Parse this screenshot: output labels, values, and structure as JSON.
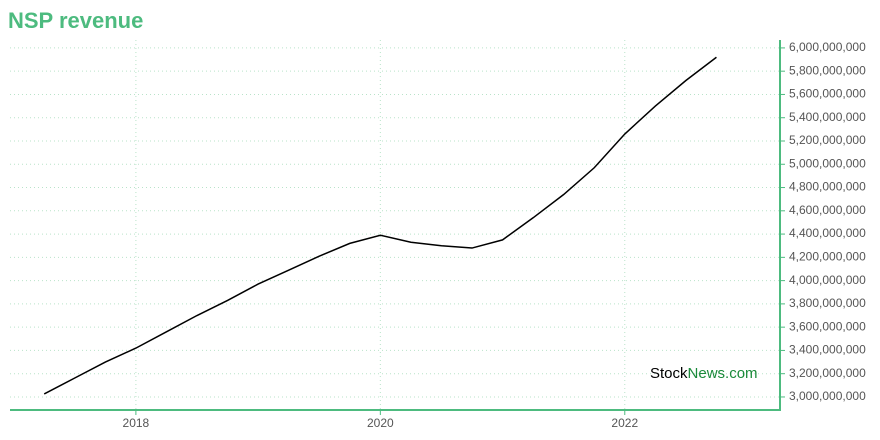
{
  "chart_data": {
    "type": "line",
    "title": "NSP revenue",
    "x": [
      2017.25,
      2017.5,
      2017.75,
      2018.0,
      2018.25,
      2018.5,
      2018.75,
      2019.0,
      2019.25,
      2019.5,
      2019.75,
      2020.0,
      2020.25,
      2020.5,
      2020.75,
      2021.0,
      2021.25,
      2021.5,
      2021.75,
      2022.0,
      2022.25,
      2022.5,
      2022.75
    ],
    "values": [
      3026000000,
      3163000000,
      3300000000,
      3420000000,
      3560000000,
      3700000000,
      3830000000,
      3970000000,
      4090000000,
      4210000000,
      4320000000,
      4390000000,
      4330000000,
      4300000000,
      4280000000,
      4350000000,
      4540000000,
      4740000000,
      4970000000,
      5260000000,
      5500000000,
      5720000000,
      5920000000
    ],
    "color": "#000000",
    "xlim": [
      2016.97,
      2023.27
    ],
    "xticks": [
      2018,
      2020,
      2022
    ],
    "ylim": [
      2888000000,
      6068000000
    ],
    "yticks": [
      {
        "value": 3000000000,
        "label": "3,000,000,000"
      },
      {
        "value": 3200000000,
        "label": "3,200,000,000"
      },
      {
        "value": 3400000000,
        "label": "3,400,000,000"
      },
      {
        "value": 3600000000,
        "label": "3,600,000,000"
      },
      {
        "value": 3800000000,
        "label": "3,800,000,000"
      },
      {
        "value": 4000000000,
        "label": "4,000,000,000"
      },
      {
        "value": 4200000000,
        "label": "4,200,000,000"
      },
      {
        "value": 4400000000,
        "label": "4,400,000,000"
      },
      {
        "value": 4600000000,
        "label": "4,600,000,000"
      },
      {
        "value": 4800000000,
        "label": "4,800,000,000"
      },
      {
        "value": 5000000000,
        "label": "5,000,000,000"
      },
      {
        "value": 5200000000,
        "label": "5,200,000,000"
      },
      {
        "value": 5400000000,
        "label": "5,400,000,000"
      },
      {
        "value": 5600000000,
        "label": "5,600,000,000"
      },
      {
        "value": 5800000000,
        "label": "5,800,000,000"
      },
      {
        "value": 6000000000,
        "label": "6,000,000,000"
      }
    ],
    "grid": true,
    "watermark": [
      "Stock",
      "News.com"
    ]
  }
}
